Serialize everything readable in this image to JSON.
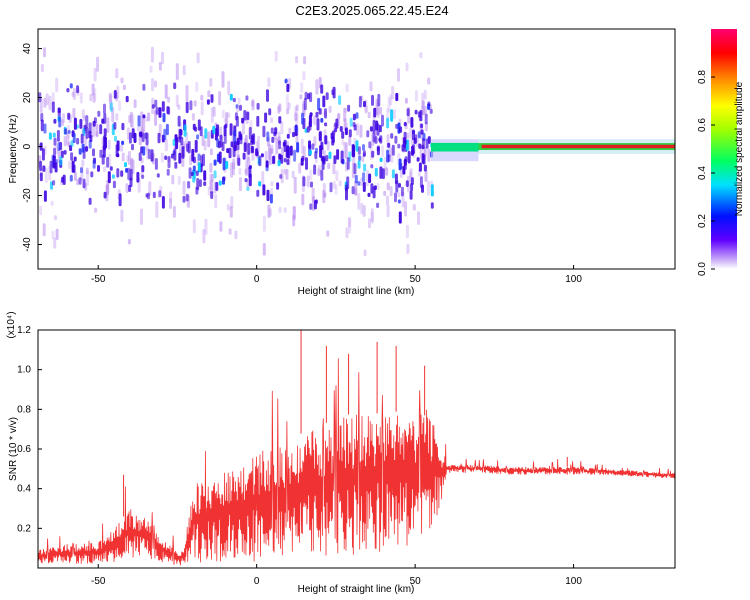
{
  "title": "C2E3.2025.065.22.45.E24",
  "colors": {
    "signal": "#f03232",
    "spectro_core": "#3a00e0",
    "spectro_halo": "#b88af0",
    "axis": "#000000"
  },
  "chart_data": [
    {
      "type": "heatmap",
      "title": "C2E3.2025.065.22.45.E24",
      "xlabel": "Height of straight line (km)",
      "ylabel": "Frequency (Hz)",
      "xlim": [
        -69,
        132
      ],
      "ylim": [
        -50,
        48
      ],
      "x_ticks": [
        -50,
        0,
        50,
        100
      ],
      "x_tick_labels": [
        "-50",
        "0",
        "50",
        "100"
      ],
      "y_ticks": [
        -40,
        -20,
        0,
        20,
        40
      ],
      "y_tick_labels": [
        "-40",
        "-20",
        "0",
        "20",
        "40"
      ],
      "grid": false,
      "colorbar": {
        "label": "Normalized spectral amplitude",
        "range": [
          0,
          1
        ],
        "ticks": [
          0.0,
          0.2,
          0.4,
          0.6,
          0.8
        ],
        "tick_labels": [
          "0.0",
          "0.2",
          "0.4",
          "0.6",
          "0.8"
        ],
        "colormap": "rainbow (violet to red)"
      },
      "regions": [
        {
          "x_range": [
            -69,
            55
          ],
          "frequency_spread_hz": [
            -45,
            45
          ],
          "amplitude_range": [
            0.0,
            0.3
          ],
          "description": "broadband scattered energy"
        },
        {
          "x_range": [
            55,
            70
          ],
          "frequency_hz": 0,
          "amplitude_range": [
            0.3,
            0.7
          ],
          "description": "narrowing transition"
        },
        {
          "x_range": [
            70,
            132
          ],
          "frequency_hz": 0,
          "frequency_width_hz": 2,
          "amplitude_range": [
            0.85,
            1.0
          ],
          "description": "narrow line near 0 Hz"
        }
      ]
    },
    {
      "type": "line",
      "xlabel": "Height of straight line (km)",
      "ylabel": "SNR (10 * v/v)",
      "scale_label": "(x10⁴)",
      "xlim": [
        -69,
        132
      ],
      "ylim": [
        0,
        1.2
      ],
      "x_ticks": [
        -50,
        0,
        50,
        100
      ],
      "x_tick_labels": [
        "-50",
        "0",
        "50",
        "100"
      ],
      "y_ticks": [
        0.2,
        0.4,
        0.6,
        0.8,
        1.0,
        1.2
      ],
      "y_tick_labels": [
        "0.2",
        "0.4",
        "0.6",
        "0.8",
        "1.0",
        "1.2"
      ],
      "grid": false,
      "series": [
        {
          "color": "#f03232",
          "envelope": {
            "x": [
              -69,
              -60,
              -50,
              -45,
              -40,
              -35,
              -30,
              -25,
              -23,
              -20,
              -10,
              0,
              10,
              20,
              30,
              40,
              50,
              55,
              59,
              60,
              70,
              80,
              90,
              100,
              110,
              120,
              132
            ],
            "baseline": [
              0.02,
              0.02,
              0.02,
              0.03,
              0.05,
              0.05,
              0.03,
              0.01,
              0.01,
              0.02,
              0.03,
              0.03,
              0.04,
              0.05,
              0.06,
              0.08,
              0.12,
              0.2,
              0.32,
              0.48,
              0.48,
              0.47,
              0.47,
              0.47,
              0.47,
              0.46,
              0.45
            ],
            "typical": [
              0.09,
              0.12,
              0.13,
              0.2,
              0.3,
              0.25,
              0.15,
              0.08,
              0.1,
              0.42,
              0.5,
              0.58,
              0.65,
              0.72,
              0.78,
              0.78,
              0.8,
              0.75,
              0.62,
              0.52,
              0.52,
              0.51,
              0.51,
              0.51,
              0.5,
              0.49,
              0.48
            ],
            "peak": [
              0.14,
              0.18,
              0.2,
              0.3,
              0.47,
              0.42,
              0.23,
              0.15,
              0.17,
              0.62,
              0.75,
              0.88,
              1.0,
              1.2,
              1.15,
              1.08,
              1.02,
              0.95,
              0.78,
              0.56,
              0.55,
              0.54,
              0.54,
              0.56,
              0.53,
              0.51,
              0.5
            ]
          },
          "spikes": [
            {
              "x": 14,
              "y": 1.2
            },
            {
              "x": 22,
              "y": 1.12
            },
            {
              "x": 29,
              "y": 1.08
            },
            {
              "x": 38,
              "y": 1.14
            },
            {
              "x": 44,
              "y": 1.12
            },
            {
              "x": 53,
              "y": 1.02
            },
            {
              "x": -42,
              "y": 0.47
            },
            {
              "x": 98,
              "y": 0.56
            }
          ]
        }
      ]
    }
  ]
}
